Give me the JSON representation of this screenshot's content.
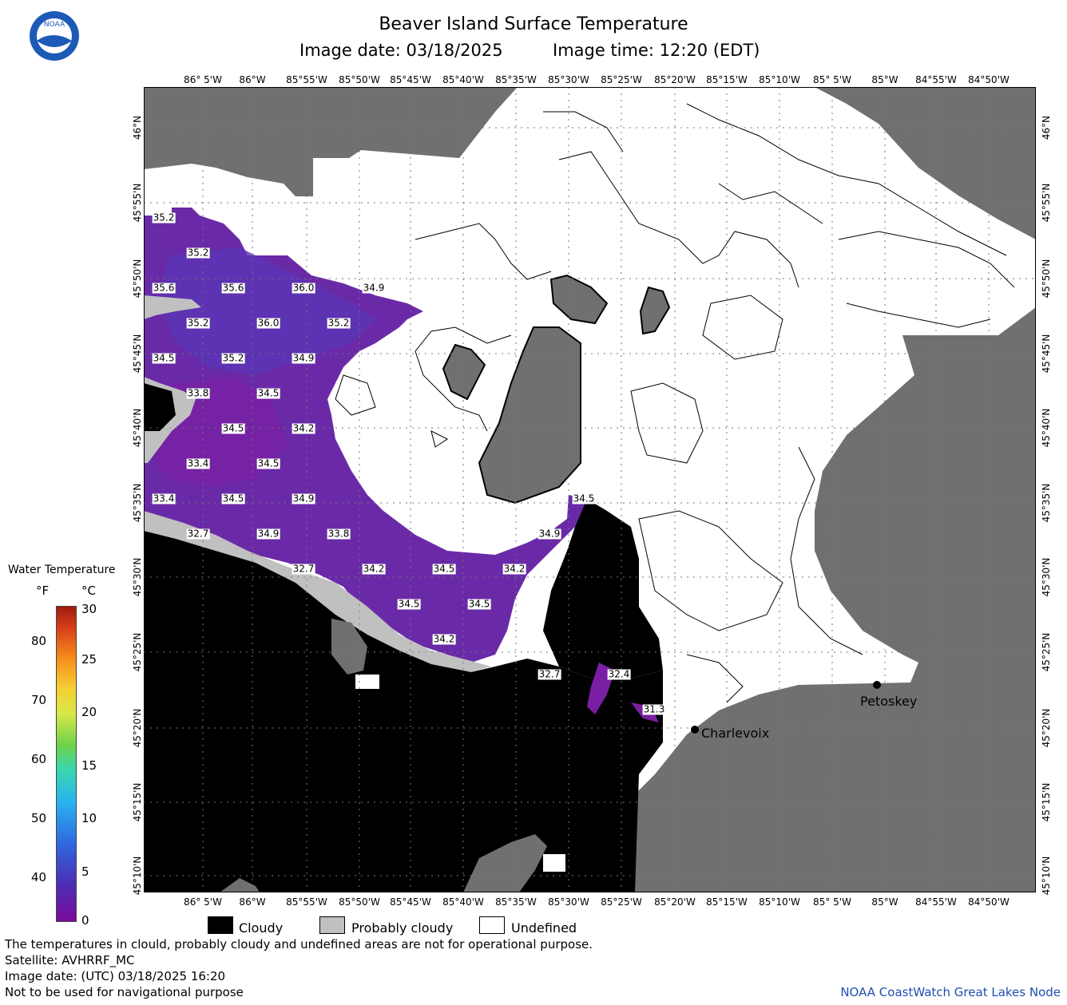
{
  "header": {
    "title": "Beaver Island Surface Temperature",
    "subtitle_date": "Image date: 03/18/2025",
    "subtitle_time": "Image time: 12:20 (EDT)"
  },
  "logo_text": "NOAA",
  "longitudes": [
    "86° 5'W",
    "86°W",
    "85°55'W",
    "85°50'W",
    "85°45'W",
    "85°40'W",
    "85°35'W",
    "85°30'W",
    "85°25'W",
    "85°20'W",
    "85°15'W",
    "85°10'W",
    "85° 5'W",
    "85°W",
    "84°55'W",
    "84°50'W"
  ],
  "latitudes": [
    "46°N",
    "45°55'N",
    "45°50'N",
    "45°45'N",
    "45°40'N",
    "45°35'N",
    "45°30'N",
    "45°25'N",
    "45°20'N",
    "45°15'N",
    "45°10'N"
  ],
  "temp_labels": [
    "35.2",
    "35.2",
    "35.6",
    "35.6",
    "36.0",
    "34.9",
    "35.2",
    "36.0",
    "35.2",
    "34.5",
    "35.2",
    "34.9",
    "33.8",
    "34.5",
    "34.5",
    "34.2",
    "33.4",
    "34.5",
    "33.4",
    "34.5",
    "34.9",
    "34.5",
    "32.7",
    "34.9",
    "33.8",
    "34.9",
    "32.7",
    "34.2",
    "34.5",
    "34.2",
    "34.5",
    "34.5",
    "34.2",
    "32.7",
    "32.4",
    "31.3"
  ],
  "cities": [
    "Charlevoix",
    "Petoskey"
  ],
  "color_scale": {
    "title": "Water Temperature",
    "unit_f": "°F",
    "unit_c": "°C",
    "f_ticks": [
      "80",
      "70",
      "60",
      "50",
      "40"
    ],
    "c_ticks": [
      "30",
      "25",
      "20",
      "15",
      "10",
      "5",
      "0"
    ]
  },
  "legend": {
    "cloudy": "Cloudy",
    "probably_cloudy": "Probably cloudy",
    "undefined": "Undefined"
  },
  "footer": {
    "line1": "The temperatures in clould, probably cloudy and undefined areas are not for operational purpose.",
    "line2": "Satellite: AVHRRF_MC",
    "line3": "Image date: (UTC) 03/18/2025  16:20",
    "line4": "Not to be used for navigational purpose",
    "credit": "NOAA CoastWatch Great Lakes Node"
  },
  "colors": {
    "land": "#707070",
    "cloud": "#000000",
    "probably_cloud": "#c0c0c0",
    "undefined": "#ffffff",
    "cold_water": "#6a2aa8",
    "credit": "#1f4fb0"
  }
}
